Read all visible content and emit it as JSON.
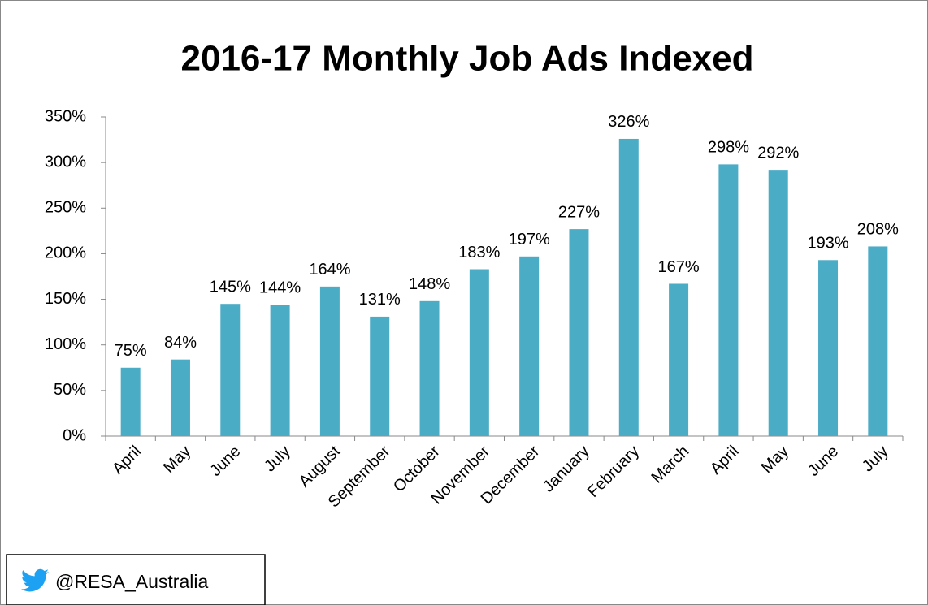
{
  "chart_data": {
    "type": "bar",
    "title": "2016-17 Monthly Job Ads Indexed",
    "categories": [
      "April",
      "May",
      "June",
      "July",
      "August",
      "September",
      "October",
      "November",
      "December",
      "January",
      "February",
      "March",
      "April",
      "May",
      "June",
      "July"
    ],
    "values": [
      75,
      84,
      145,
      144,
      164,
      131,
      148,
      183,
      197,
      227,
      326,
      167,
      298,
      292,
      193,
      208
    ],
    "value_labels": [
      "75%",
      "84%",
      "145%",
      "144%",
      "164%",
      "131%",
      "148%",
      "183%",
      "197%",
      "227%",
      "326%",
      "167%",
      "298%",
      "292%",
      "193%",
      "208%"
    ],
    "color": "#4bacc6",
    "ylim": [
      0,
      350
    ],
    "yticks": [
      {
        "value": 0,
        "label": "0%"
      },
      {
        "value": 50,
        "label": "50%"
      },
      {
        "value": 100,
        "label": "100%"
      },
      {
        "value": 150,
        "label": "150%"
      },
      {
        "value": 200,
        "label": "200%"
      },
      {
        "value": 250,
        "label": "250%"
      },
      {
        "value": 300,
        "label": "300%"
      },
      {
        "value": 350,
        "label": "350%"
      }
    ],
    "grid": false
  },
  "footer": "@RESA_Australia"
}
